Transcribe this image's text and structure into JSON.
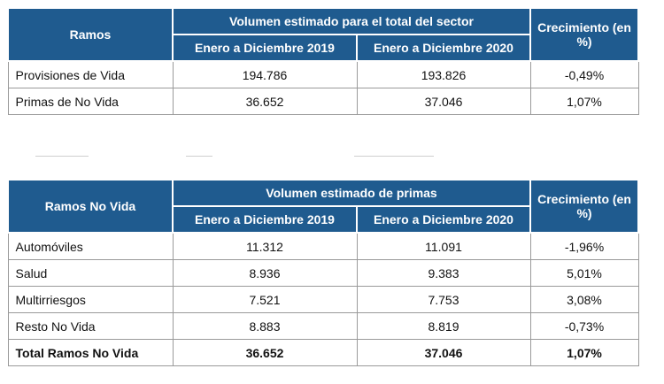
{
  "table1": {
    "col_header_ramos": "Ramos",
    "group_header": "Volumen estimado para el total del sector",
    "col_2019": "Enero a Diciembre 2019",
    "col_2020": "Enero a Diciembre 2020",
    "col_growth": "Crecimiento (en %)",
    "rows": [
      {
        "label": "Provisiones de Vida",
        "v2019": "194.786",
        "v2020": "193.826",
        "growth": "-0,49%"
      },
      {
        "label": "Primas de No Vida",
        "v2019": "36.652",
        "v2020": "37.046",
        "growth": "1,07%"
      }
    ]
  },
  "table2": {
    "col_header_ramos": "Ramos No Vida",
    "group_header": "Volumen estimado de primas",
    "col_2019": "Enero a Diciembre 2019",
    "col_2020": "Enero a Diciembre 2020",
    "col_growth": "Crecimiento (en %)",
    "rows": [
      {
        "label": "Automóviles",
        "v2019": "11.312",
        "v2020": "11.091",
        "growth": "-1,96%"
      },
      {
        "label": "Salud",
        "v2019": "8.936",
        "v2020": "9.383",
        "growth": "5,01%"
      },
      {
        "label": "Multirriesgos",
        "v2019": "7.521",
        "v2020": "7.753",
        "growth": "3,08%"
      },
      {
        "label": "Resto No Vida",
        "v2019": "8.883",
        "v2020": "8.819",
        "growth": "-0,73%"
      }
    ],
    "total": {
      "label": "Total Ramos No Vida",
      "v2019": "36.652",
      "v2020": "37.046",
      "growth": "1,07%"
    }
  },
  "colors": {
    "header_bg": "#1f5b8f",
    "header_text": "#ffffff",
    "border": "#9a9a9a"
  }
}
